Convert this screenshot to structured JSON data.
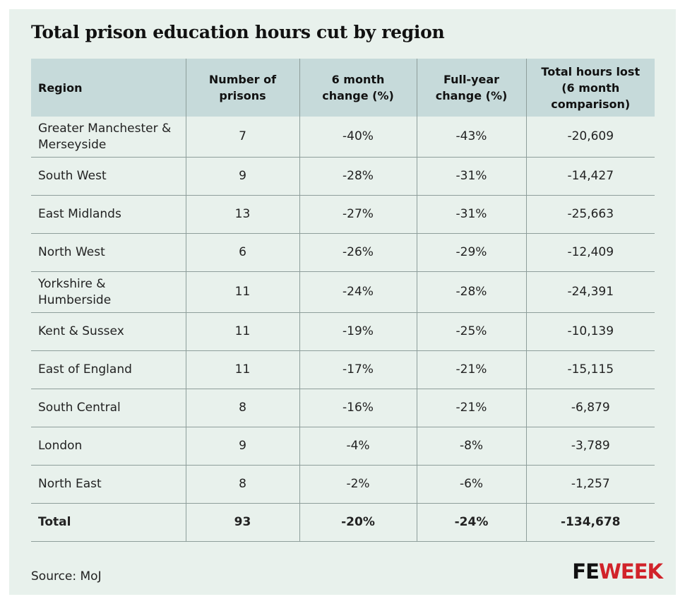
{
  "title": "Total prison education hours cut by region",
  "table": {
    "headers": [
      "Region",
      "Number of prisons",
      "6 month change (%)",
      "Full-year change (%)",
      "Total hours lost (6 month comparison)"
    ],
    "rows": [
      [
        "Greater Manchester & Merseyside",
        "7",
        "-40%",
        "-43%",
        "-20,609"
      ],
      [
        "South West",
        "9",
        "-28%",
        "-31%",
        "-14,427"
      ],
      [
        "East Midlands",
        "13",
        "-27%",
        "-31%",
        "-25,663"
      ],
      [
        "North West",
        "6",
        "-26%",
        "-29%",
        "-12,409"
      ],
      [
        "Yorkshire & Humberside",
        "11",
        "-24%",
        "-28%",
        "-24,391"
      ],
      [
        "Kent & Sussex",
        "11",
        "-19%",
        "-25%",
        "-10,139"
      ],
      [
        "East of England",
        "11",
        "-17%",
        "-21%",
        "-15,115"
      ],
      [
        "South Central",
        "8",
        "-16%",
        "-21%",
        "-6,879"
      ],
      [
        "London",
        "9",
        "-4%",
        "-8%",
        "-3,789"
      ],
      [
        "North East",
        "8",
        "-2%",
        "-6%",
        "-1,257"
      ]
    ],
    "total": [
      "Total",
      "93",
      "-20%",
      "-24%",
      "-134,678"
    ]
  },
  "source": "Source: MoJ",
  "logo": {
    "part1": "FE",
    "part2": "WEEK",
    "part1_color": "#111111",
    "part2_color": "#d1232a"
  },
  "colors": {
    "background": "#e8f1ec",
    "header_background": "#c6dada",
    "rule": "#8e9e9b"
  }
}
